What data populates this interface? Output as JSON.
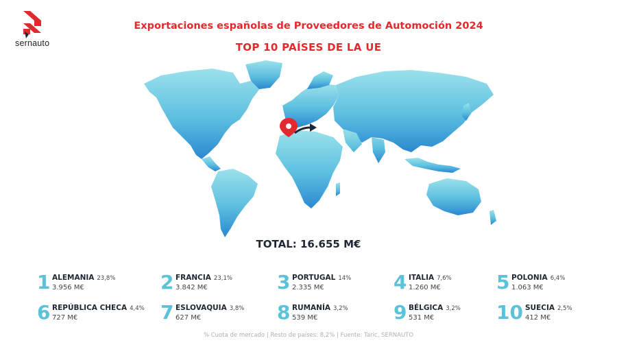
{
  "brand": {
    "name": "sernauto"
  },
  "header": {
    "title": "Exportaciones españolas de Proveedores de Automoción 2024",
    "subtitle": "TOP 10 PAÍSES DE LA UE"
  },
  "total": "TOTAL: 16.655 M€",
  "countries": [
    {
      "rank": "1",
      "name": "ALEMANIA",
      "share": "23,8%",
      "value": "3.956 M€"
    },
    {
      "rank": "2",
      "name": "FRANCIA",
      "share": "23,1%",
      "value": "3.842 M€"
    },
    {
      "rank": "3",
      "name": "PORTUGAL",
      "share": "14%",
      "value": "2.335 M€"
    },
    {
      "rank": "4",
      "name": "ITALIA",
      "share": "7,6%",
      "value": "1.260 M€"
    },
    {
      "rank": "5",
      "name": "POLONIA",
      "share": "6,4%",
      "value": "1.063 M€"
    },
    {
      "rank": "6",
      "name": "REPÚBLICA CHECA",
      "share": "4,4%",
      "value": "727 M€"
    },
    {
      "rank": "7",
      "name": "ESLOVAQUIA",
      "share": "3,8%",
      "value": "627 M€"
    },
    {
      "rank": "8",
      "name": "RUMANÍA",
      "share": "3,2%",
      "value": "539 M€"
    },
    {
      "rank": "9",
      "name": "BÉLGICA",
      "share": "3,2%",
      "value": "531 M€"
    },
    {
      "rank": "10",
      "name": "SUECIA",
      "share": "2,5%",
      "value": "412 M€"
    }
  ],
  "footnote": "% Cuota de mercado | Resto de países: 8,2% | Fuente: Taric, SERNAUTO",
  "colors": {
    "accent": "#e2292e",
    "rank": "#5bc2d8",
    "map_light": "#8fdbe6",
    "map_dark": "#2f8fd2",
    "text": "#1e2733"
  },
  "icons": {
    "logo": "sernauto-logo-icon",
    "marker": "map-pin-icon",
    "arrow": "export-arrow-icon"
  }
}
